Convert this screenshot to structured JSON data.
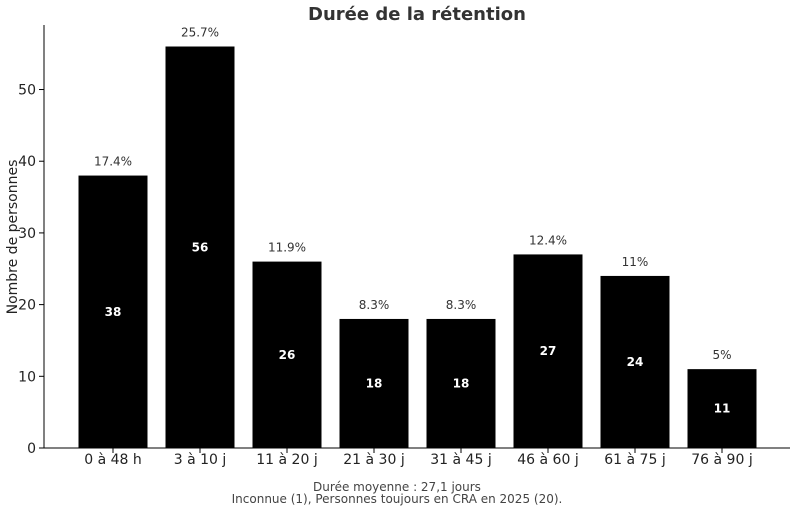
{
  "chart_data": {
    "type": "bar",
    "title": "Durée de la rétention",
    "ylabel": "Nombre de personnes",
    "xlabel": "",
    "ylim": [
      0,
      59
    ],
    "yticks": [
      0,
      10,
      20,
      30,
      40,
      50
    ],
    "grid": false,
    "bar_color": "#000000",
    "categories": [
      "0 à 48 h",
      "3 à 10 j",
      "11 à 20 j",
      "21 à 30 j",
      "31 à 45 j",
      "46 à 60 j",
      "61 à 75 j",
      "76 à 90 j"
    ],
    "values": [
      38,
      56,
      26,
      18,
      18,
      27,
      24,
      11
    ],
    "percent_labels": [
      "17.4%",
      "25.7%",
      "11.9%",
      "8.3%",
      "8.3%",
      "12.4%",
      "11%",
      "5%"
    ],
    "footnotes": [
      "Durée moyenne : 27,1 jours",
      "Inconnue (1), Personnes toujours en CRA en 2025 (20)."
    ]
  }
}
